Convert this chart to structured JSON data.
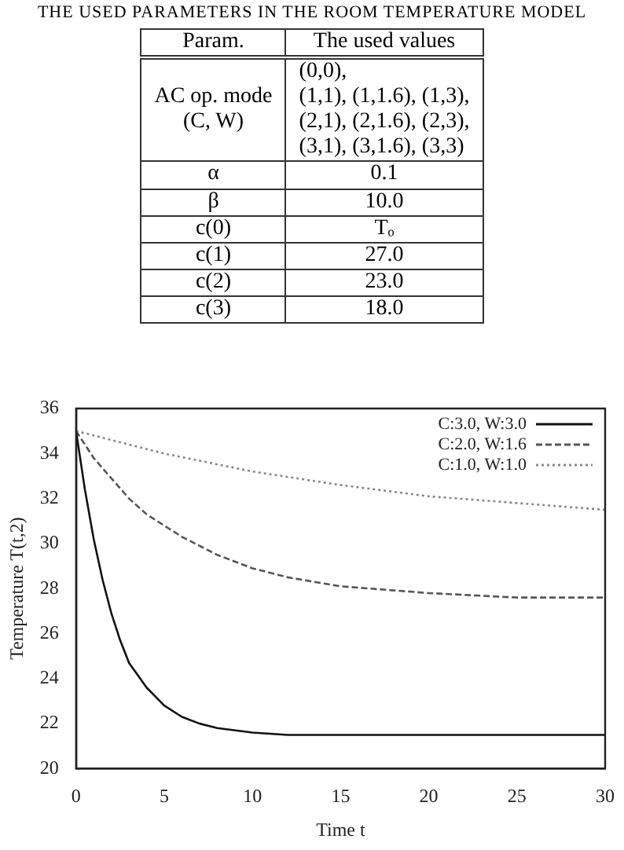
{
  "chart_data": [
    {
      "type": "other",
      "title": "THE USED PARAMETERS IN THE ROOM TEMPERATURE MODEL",
      "annotations": [
        "Param.",
        "The used values",
        "AC op. mode\n(C, W)",
        "(0,0),\n(1,1), (1,1.6), (1,3),\n(2,1), (2,1.6), (2,3),\n(3,1), (3,1.6), (3,3)",
        "α",
        "0.1",
        "β",
        "10.0",
        "c(0)",
        "Tₒ",
        "c(1)",
        "27.0",
        "c(2)",
        "23.0",
        "c(3)",
        "18.0"
      ]
    },
    {
      "type": "line",
      "xlabel": "Time t",
      "ylabel": "Temperature T(t,2)",
      "xlim": [
        0,
        30
      ],
      "ylim": [
        20,
        36
      ],
      "xticks": [
        0,
        5,
        10,
        15,
        20,
        25,
        30
      ],
      "yticks": [
        20,
        22,
        24,
        26,
        28,
        30,
        32,
        34,
        36
      ],
      "grid": false,
      "legend": "top right",
      "marker": "none",
      "series": [
        {
          "name": "C:3.0, W:3.0",
          "color": "#111111",
          "line_style": "solid",
          "x": [
            0,
            0.5,
            1,
            1.5,
            2,
            2.5,
            3,
            4,
            5,
            6,
            7,
            8,
            10,
            12,
            15,
            20,
            25,
            30
          ],
          "values": [
            35,
            32.4,
            30.2,
            28.4,
            26.9,
            25.7,
            24.7,
            23.6,
            22.8,
            22.3,
            22.0,
            21.8,
            21.6,
            21.5,
            21.5,
            21.5,
            21.5,
            21.5
          ]
        },
        {
          "name": "C:2.0, W:1.6",
          "color": "#555555",
          "line_style": "dashed",
          "x": [
            0,
            1,
            2,
            3,
            4,
            5,
            6,
            8,
            10,
            12,
            15,
            20,
            25,
            30
          ],
          "values": [
            35,
            33.8,
            32.9,
            32.0,
            31.3,
            30.8,
            30.3,
            29.5,
            28.9,
            28.5,
            28.1,
            27.8,
            27.6,
            27.6
          ]
        },
        {
          "name": "C:1.0, W:1.0",
          "color": "#888888",
          "line_style": "dotted",
          "x": [
            0,
            5,
            10,
            15,
            20,
            25,
            30
          ],
          "values": [
            35,
            34.0,
            33.2,
            32.6,
            32.1,
            31.8,
            31.5
          ]
        }
      ]
    }
  ]
}
